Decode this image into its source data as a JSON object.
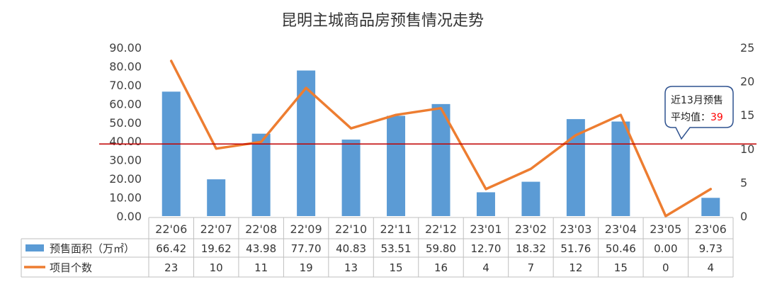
{
  "chart_data": {
    "type": "bar",
    "title": "昆明主城商品房预售情况走势",
    "categories": [
      "22'06",
      "22'07",
      "22'08",
      "22'09",
      "22'10",
      "22'11",
      "22'12",
      "23'01",
      "23'02",
      "23'03",
      "23'04",
      "23'05",
      "23'06"
    ],
    "left_ylim": [
      0,
      90
    ],
    "left_yticks": [
      "0.00",
      "10.00",
      "20.00",
      "30.00",
      "40.00",
      "50.00",
      "60.00",
      "70.00",
      "80.00",
      "90.00"
    ],
    "right_ylim": [
      0,
      25
    ],
    "right_yticks": [
      "0",
      "5",
      "10",
      "15",
      "20",
      "25"
    ],
    "series": [
      {
        "name": "预售面积（万㎡）",
        "type": "bar",
        "axis": "left",
        "color": "#5B9BD5",
        "values": [
          66.42,
          19.62,
          43.98,
          77.7,
          40.83,
          53.51,
          59.8,
          12.7,
          18.32,
          51.76,
          50.46,
          0.0,
          9.73
        ],
        "labels": [
          "66.42",
          "19.62",
          "43.98",
          "77.70",
          "40.83",
          "53.51",
          "59.80",
          "12.70",
          "18.32",
          "51.76",
          "50.46",
          "0.00",
          "9.73"
        ]
      },
      {
        "name": "项目个数",
        "type": "line",
        "axis": "right",
        "color": "#ED7D31",
        "values": [
          23,
          10,
          11,
          19,
          13,
          15,
          16,
          4,
          7,
          12,
          15,
          0,
          4
        ],
        "labels": [
          "23",
          "10",
          "11",
          "19",
          "13",
          "15",
          "16",
          "4",
          "7",
          "12",
          "15",
          "0",
          "4"
        ]
      }
    ],
    "reference_line": {
      "value": 38.5,
      "axis": "left",
      "color": "#C00000"
    },
    "callout": {
      "line1": "近13月预售",
      "line2_prefix": "平均值：",
      "line2_value": "39",
      "value_color": "#FF0000",
      "border_color": "#2F528F"
    },
    "legend": "data-table",
    "grid": false
  }
}
